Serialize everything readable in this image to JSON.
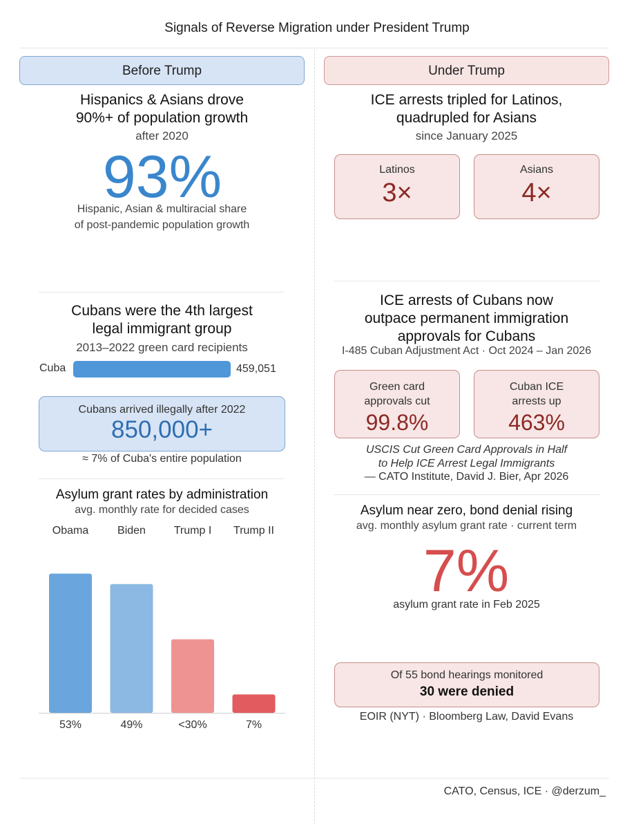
{
  "title": "Signals of Reverse Migration under President Trump",
  "left": {
    "header": "Before Trump",
    "growth": {
      "heading_line1": "Hispanics & Asians drove",
      "heading_line2": "90%+ of population growth",
      "sub": "after 2020",
      "big_value": "93%",
      "note_line1": "Hispanic, Asian & multiracial share",
      "note_line2": "of post-pandemic population growth"
    },
    "cubans": {
      "heading_line1": "Cubans were the 4th largest",
      "heading_line2": "legal immigrant group",
      "sub": "2013–2022 green card recipients",
      "bar_label": "Cuba",
      "bar_value": "459,051",
      "illegal_label": "Cubans arrived illegally after 2022",
      "illegal_value": "850,000+",
      "illegal_note": "≈ 7% of Cuba's entire population"
    },
    "asylum": {
      "heading": "Asylum grant rates by administration",
      "sub": "avg. monthly rate for decided cases"
    }
  },
  "right": {
    "header": "Under Trump",
    "ice": {
      "heading_line1": "ICE arrests tripled for Latinos,",
      "heading_line2": "quadrupled for Asians",
      "sub": "since January 2025",
      "card1_label": "Latinos",
      "card1_value": "3×",
      "card2_label": "Asians",
      "card2_value": "4×"
    },
    "cubans": {
      "heading_line1": "ICE arrests of Cubans now",
      "heading_line2": "outpace permanent immigration",
      "heading_line3": "approvals for Cubans",
      "sub": "I-485 Cuban Adjustment Act · Oct 2024 – Jan 2026",
      "card1_label_line1": "Green card",
      "card1_label_line2": "approvals cut",
      "card1_value": "99.8%",
      "card2_label_line1": "Cuban ICE",
      "card2_label_line2": "arrests up",
      "card2_value": "463%",
      "quote_line1": "USCIS Cut Green Card Approvals in Half",
      "quote_line2": "to Help ICE Arrest Legal Immigrants",
      "quote_source": "— CATO Institute, David J. Bier, Apr 2026"
    },
    "asylum": {
      "heading": "Asylum near zero, bond denial rising",
      "sub": "avg. monthly asylum grant rate · current term",
      "big_value": "7%",
      "big_note": "asylum grant rate in Feb 2025",
      "bond_line1": "Of 55 bond hearings monitored",
      "bond_line2": "30 were denied",
      "source": "EOIR (NYT) · Bloomberg Law, David Evans"
    }
  },
  "footer": "CATO, Census, ICE · @derzum_",
  "chart_data": [
    {
      "type": "bar",
      "orientation": "horizontal",
      "categories": [
        "Cuba"
      ],
      "values": [
        459051
      ],
      "value_labels": [
        "459,051"
      ],
      "colors": [
        "#4f97d8"
      ]
    },
    {
      "type": "bar",
      "title": "Asylum grant rates by administration",
      "subtitle": "avg. monthly rate for decided cases",
      "categories": [
        "Obama",
        "Biden",
        "Trump I",
        "Trump II"
      ],
      "values": [
        53,
        49,
        28,
        7
      ],
      "value_labels": [
        "53%",
        "49%",
        "<30%",
        "7%"
      ],
      "colors": [
        "#6aa6dd",
        "#8bb9e3",
        "#ee9391",
        "#e25b5e"
      ],
      "ylim": [
        0,
        100
      ],
      "grid": false
    }
  ]
}
